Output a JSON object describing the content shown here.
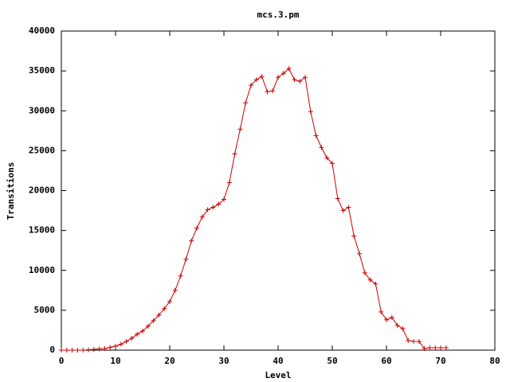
{
  "chart_data": {
    "type": "line",
    "title": "mcs.3.pm",
    "x_label": "Level",
    "y_label": "Transitions",
    "x": [
      0,
      1,
      2,
      3,
      4,
      5,
      6,
      7,
      8,
      9,
      10,
      11,
      12,
      13,
      14,
      15,
      16,
      17,
      18,
      19,
      20,
      21,
      22,
      23,
      24,
      25,
      26,
      27,
      28,
      29,
      30,
      31,
      32,
      33,
      34,
      35,
      36,
      37,
      38,
      39,
      40,
      41,
      42,
      43,
      44,
      45,
      46,
      47,
      48,
      49,
      50,
      51,
      52,
      53,
      54,
      55,
      56,
      57,
      58,
      59,
      60,
      61,
      62,
      63,
      64,
      65,
      66,
      67,
      68,
      69,
      70,
      71
    ],
    "series": [
      {
        "color": "#cc0000",
        "values": [
          0,
          0,
          0,
          0,
          0,
          50,
          100,
          150,
          200,
          350,
          500,
          750,
          1100,
          1500,
          2000,
          2400,
          3000,
          3700,
          4400,
          5200,
          6100,
          7500,
          9300,
          11400,
          13700,
          15300,
          16700,
          17600,
          17900,
          18300,
          18900,
          21000,
          24600,
          27700,
          31000,
          33200,
          33900,
          34300,
          32400,
          32500,
          34200,
          34700,
          35300,
          33900,
          33700,
          34200,
          29900,
          26900,
          25400,
          24100,
          23400,
          19000,
          17500,
          17900,
          14300,
          12100,
          9700,
          8800,
          8300,
          4800,
          3800,
          4100,
          3100,
          2700,
          1200,
          1100,
          1100,
          200,
          300,
          300,
          300,
          300
        ]
      }
    ],
    "xlim": [
      0,
      80
    ],
    "ylim": [
      0,
      40000
    ],
    "xticks": [
      0,
      10,
      20,
      30,
      40,
      50,
      60,
      70,
      80
    ],
    "yticks": [
      0,
      5000,
      10000,
      15000,
      20000,
      25000,
      30000,
      35000,
      40000
    ]
  }
}
